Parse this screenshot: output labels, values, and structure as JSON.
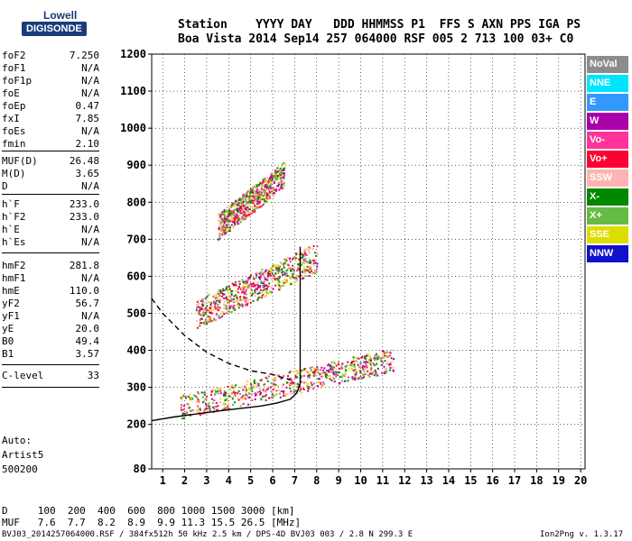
{
  "logo": {
    "line1": "Lowell",
    "line2": "DIGISONDE"
  },
  "header": {
    "line1": "Station    YYYY DAY   DDD HHMMSS P1  FFS S AXN PPS IGA PS",
    "line2": "Boa Vista 2014 Sep14 257 064000 RSF 005 2 713 100 03+ C0"
  },
  "params": [
    {
      "k": "foF2",
      "v": "7.250"
    },
    {
      "k": "foF1",
      "v": "N/A"
    },
    {
      "k": "foF1p",
      "v": "N/A"
    },
    {
      "k": "foE",
      "v": "N/A"
    },
    {
      "k": "foEp",
      "v": "0.47"
    },
    {
      "k": "fxI",
      "v": "7.85"
    },
    {
      "k": "foEs",
      "v": "N/A"
    },
    {
      "k": "fmin",
      "v": "2.10"
    },
    {
      "k": "MUF(D)",
      "v": "26.48"
    },
    {
      "k": "M(D)",
      "v": "3.65"
    },
    {
      "k": "D",
      "v": "N/A"
    },
    {
      "k": "h`F",
      "v": "233.0"
    },
    {
      "k": "h`F2",
      "v": "233.0"
    },
    {
      "k": "h`E",
      "v": "N/A"
    },
    {
      "k": "h`Es",
      "v": "N/A"
    },
    {
      "k": "hmF2",
      "v": "281.8"
    },
    {
      "k": "hmF1",
      "v": "N/A"
    },
    {
      "k": "hmE",
      "v": "110.0"
    },
    {
      "k": "yF2",
      "v": "56.7"
    },
    {
      "k": "yF1",
      "v": "N/A"
    },
    {
      "k": "yE",
      "v": "20.0"
    },
    {
      "k": "B0",
      "v": "49.4"
    },
    {
      "k": "B1",
      "v": "3.57"
    },
    {
      "k": "C-level",
      "v": "33"
    }
  ],
  "auto": {
    "l1": "Auto:",
    "l2": "Artist5",
    "l3": "500200"
  },
  "legend": [
    {
      "label": "NoVal",
      "color": "#8c8c8c"
    },
    {
      "label": "NNE",
      "color": "#00e5ff"
    },
    {
      "label": "E",
      "color": "#3399ff"
    },
    {
      "label": "W",
      "color": "#aa00aa"
    },
    {
      "label": "Vo-",
      "color": "#ff3399"
    },
    {
      "label": "Vo+",
      "color": "#ff0033"
    },
    {
      "label": "SSW",
      "color": "#ffb3b3"
    },
    {
      "label": "X-",
      "color": "#008800"
    },
    {
      "label": "X+",
      "color": "#66bb44"
    },
    {
      "label": "SSE",
      "color": "#dddd00"
    },
    {
      "label": "NNW",
      "color": "#1111cc"
    }
  ],
  "footer": {
    "line1": "D     100  200  400  600  800 1000 1500 3000 [km]",
    "line2": "MUF   7.6  7.7  8.2  8.9  9.9 11.3 15.5 26.5 [MHz]",
    "line3": "BVJ03_2014257064000.RSF / 384fx512h 50 kHz 2.5 km / DPS-4D BVJ03 003 / 2.8 N 299.3 E",
    "version": "Ion2Png v. 1.3.17"
  },
  "chart_data": {
    "type": "scatter",
    "title": "",
    "xlabel": "",
    "ylabel": "",
    "xlim": [
      0.5,
      20.2
    ],
    "ylim": [
      80,
      1200
    ],
    "xticks": [
      1,
      2,
      3,
      4,
      5,
      6,
      7,
      8,
      9,
      10,
      11,
      12,
      13,
      14,
      15,
      16,
      17,
      18,
      19,
      20
    ],
    "yticks": [
      80,
      200,
      300,
      400,
      500,
      600,
      700,
      800,
      900,
      1000,
      1100,
      1200
    ],
    "grid": true,
    "traces": [
      {
        "name": "profile",
        "style": "solid",
        "color": "#000000",
        "x": [
          0.5,
          1.5,
          2.5,
          3.5,
          4.5,
          5.5,
          6.2,
          6.8,
          7.1,
          7.25,
          7.25
        ],
        "y": [
          210,
          220,
          228,
          236,
          243,
          250,
          258,
          268,
          285,
          310,
          680
        ]
      },
      {
        "name": "extrapolation",
        "style": "dashed",
        "color": "#000000",
        "x": [
          0.5,
          1.0,
          2.0,
          3.0,
          4.0,
          5.0,
          6.0,
          6.8
        ],
        "y": [
          540,
          500,
          440,
          395,
          365,
          345,
          335,
          320
        ]
      }
    ],
    "echo_regions": [
      {
        "layer": "F 1-hop",
        "x": [
          1.8,
          11.5
        ],
        "y": [
          215,
          400
        ]
      },
      {
        "layer": "F 2-hop",
        "x": [
          2.5,
          8.0
        ],
        "y": [
          460,
          680
        ]
      },
      {
        "layer": "F 3-hop",
        "x": [
          3.5,
          6.5
        ],
        "y": [
          700,
          900
        ]
      }
    ]
  }
}
